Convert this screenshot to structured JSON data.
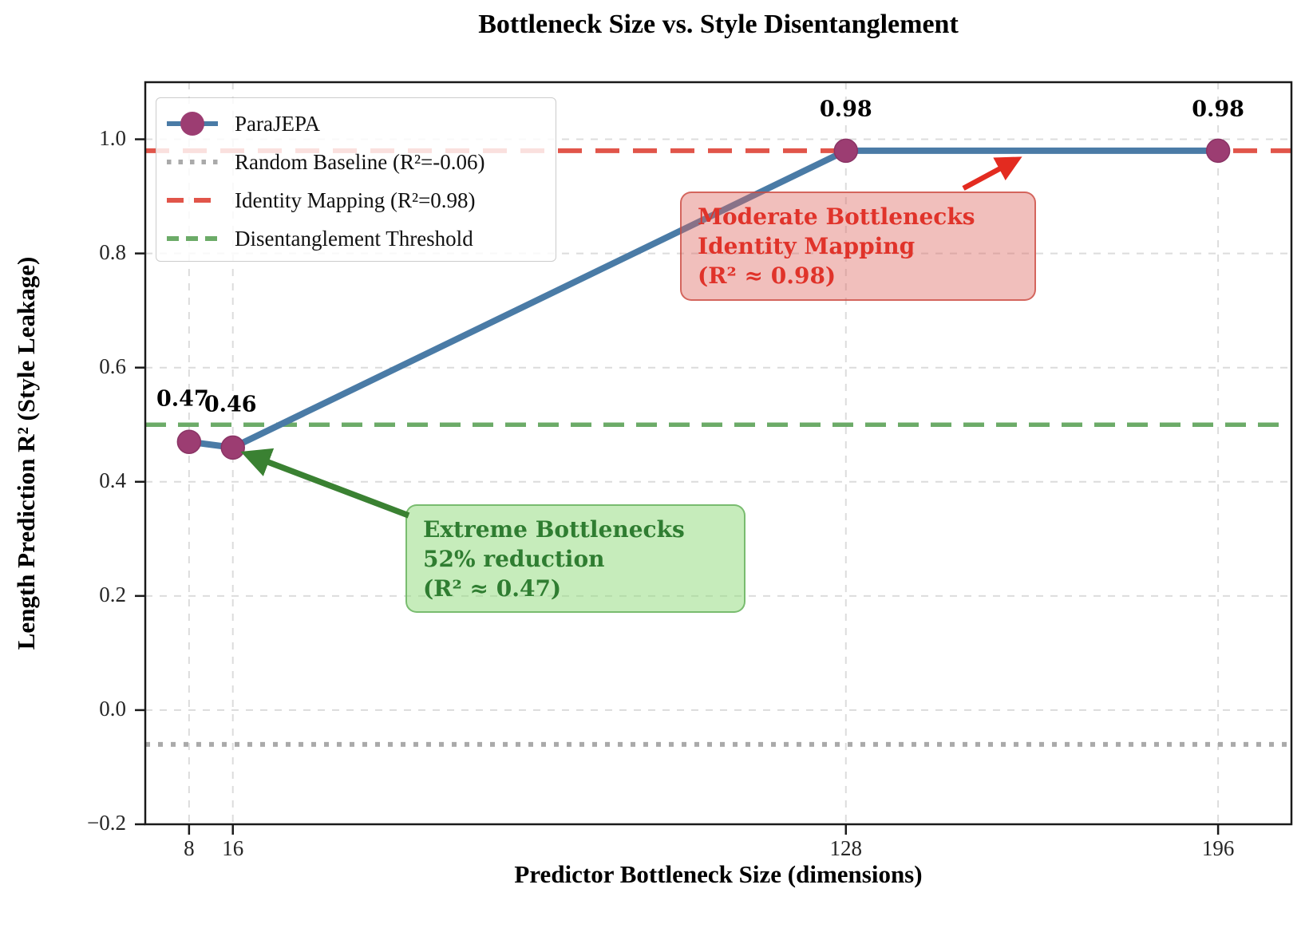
{
  "title": "Bottleneck Size vs. Style Disentanglement",
  "axes": {
    "x": {
      "label": "Predictor Bottleneck Size (dimensions)",
      "ticks": [
        8,
        16,
        128,
        196
      ],
      "tick_labels": [
        "8",
        "16",
        "128",
        "196"
      ]
    },
    "y": {
      "label": "Length Prediction R² (Style Leakage)",
      "ticks": [
        -0.2,
        0.0,
        0.2,
        0.4,
        0.6,
        0.8,
        1.0
      ],
      "tick_labels": [
        "−0.2",
        "0.0",
        "0.2",
        "0.4",
        "0.6",
        "0.8",
        "1.0"
      ]
    }
  },
  "legend": {
    "entries": [
      {
        "label": "ParaJEPA",
        "style": "line-marker",
        "color": "#4a7ba6",
        "marker_color": "#9c3d72"
      },
      {
        "label": "Random Baseline (R²=-0.06)",
        "style": "dotted",
        "color": "#aaaaaa"
      },
      {
        "label": "Identity Mapping (R²=0.98)",
        "style": "dashed-long",
        "color": "#e1554a"
      },
      {
        "label": "Disentanglement Threshold",
        "style": "dashed",
        "color": "#6cab68"
      }
    ]
  },
  "chart_data": {
    "type": "line",
    "title": "Bottleneck Size vs. Style Disentanglement",
    "xlabel": "Predictor Bottleneck Size (dimensions)",
    "ylabel": "Length Prediction R² (Style Leakage)",
    "xlim": [
      0,
      209.4
    ],
    "ylim": [
      -0.2,
      1.1
    ],
    "grid": true,
    "legend_position": "upper left",
    "series": [
      {
        "name": "ParaJEPA",
        "x": [
          8,
          16,
          128,
          196
        ],
        "y": [
          0.47,
          0.46,
          0.98,
          0.98
        ],
        "point_labels": [
          "0.47",
          "0.46",
          "0.98",
          "0.98"
        ],
        "color": "#4a7ba6",
        "marker_color": "#9c3d72",
        "marker_edge": "#8a3465"
      }
    ],
    "reference_lines": [
      {
        "name": "Random Baseline",
        "y": -0.06,
        "style": "dotted",
        "color": "#aaaaaa"
      },
      {
        "name": "Identity Mapping",
        "y": 0.98,
        "style": "dashed-long",
        "color": "#e1554a"
      },
      {
        "name": "Disentanglement Threshold",
        "y": 0.5,
        "style": "dashed",
        "color": "#6cab68"
      }
    ]
  },
  "annotations": [
    {
      "id": "moderate-bottlenecks",
      "lines": [
        "Moderate Bottlenecks",
        "Identity Mapping",
        "(R² ≈ 0.98)"
      ],
      "text_color": "#e0332a",
      "box_fill": "rgba(222,103,96,0.42)",
      "box_edge": "rgba(203,72,62,0.75)",
      "arrow_color": "#e32b20"
    },
    {
      "id": "extreme-bottlenecks",
      "lines": [
        "Extreme Bottlenecks",
        "52% reduction",
        "(R² ≈ 0.47)"
      ],
      "text_color": "#2f7d31",
      "box_fill": "rgba(151,220,132,0.55)",
      "box_edge": "rgba(113,183,103,0.9)",
      "arrow_color": "#3a8132"
    }
  ],
  "colors": {
    "grid": "#dcdcdc",
    "spine": "#1a1a1a",
    "series_line": "#4a7ba6",
    "marker": "#9c3d72",
    "identity_line": "#e1554a",
    "random_line": "#aaaaaa",
    "threshold_line": "#6cab68"
  }
}
